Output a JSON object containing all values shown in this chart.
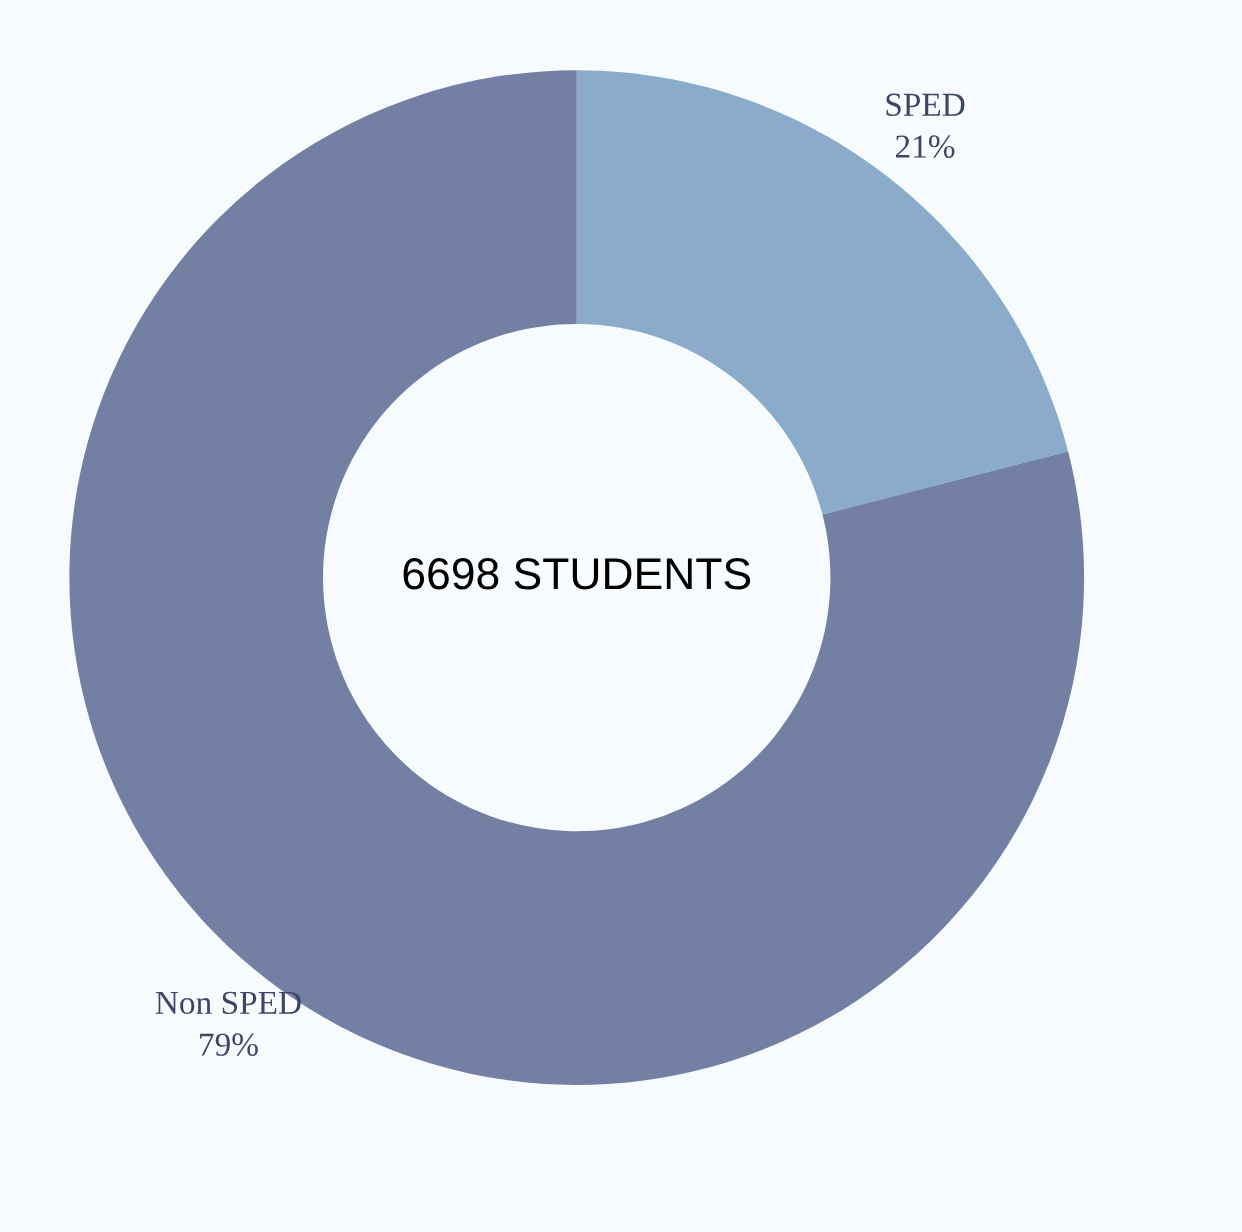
{
  "chart_data": {
    "type": "donut",
    "categories": [
      "SPED",
      "Non SPED"
    ],
    "values": [
      21,
      79
    ],
    "value_labels": [
      "21%",
      "79%"
    ],
    "colors": [
      "#8aabca",
      "#7480a3"
    ],
    "annotations": [
      "6698 STUDENTS"
    ],
    "legend": false
  }
}
